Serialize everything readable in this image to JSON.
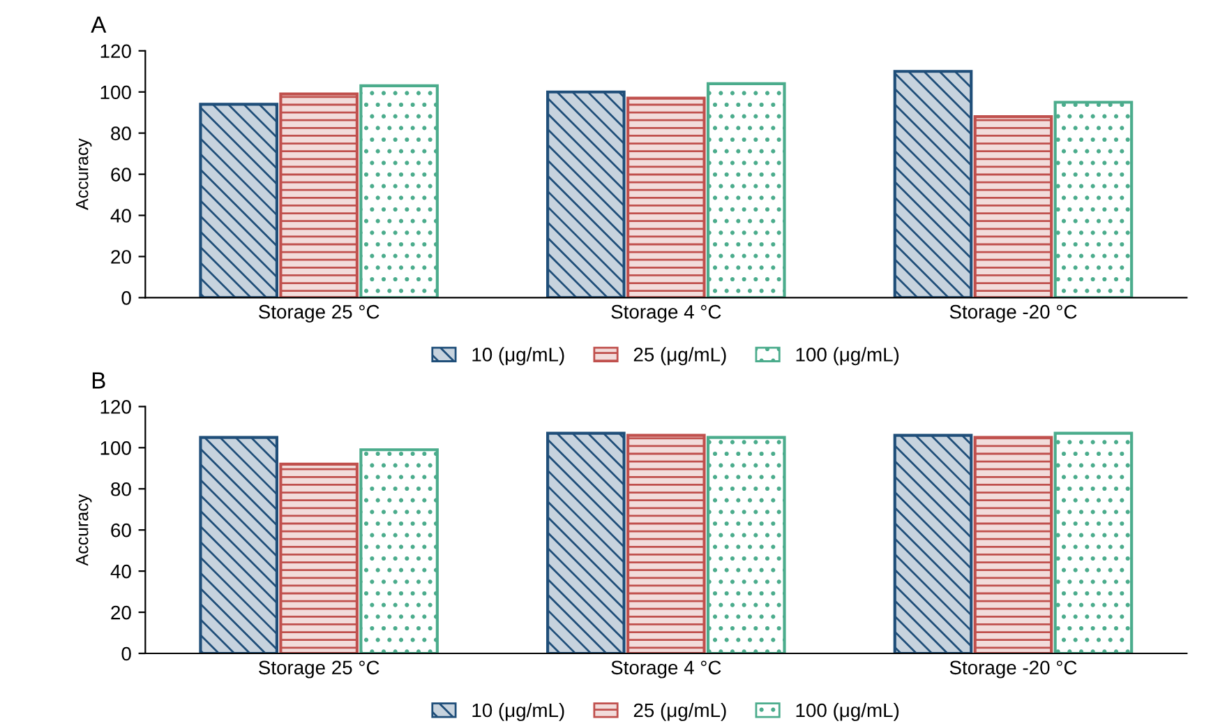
{
  "chart_data": [
    {
      "type": "bar",
      "title": "A",
      "ylabel": "Accuracy",
      "categories": [
        "Storage 25 °C",
        "Storage 4 °C",
        "Storage -20 °C"
      ],
      "ylim": [
        0,
        120
      ],
      "yticks": [
        0,
        20,
        40,
        60,
        80,
        100,
        120
      ],
      "grid": false,
      "legend": "bottom",
      "series": [
        {
          "name": "10 (μg/mL)",
          "color": "#1f4e79",
          "values": [
            94,
            100,
            110
          ]
        },
        {
          "name": "25 (μg/mL)",
          "color": "#c0504d",
          "values": [
            99,
            97,
            88
          ]
        },
        {
          "name": "100 (μg/mL)",
          "color": "#4bac8c",
          "values": [
            103,
            104,
            95
          ]
        }
      ]
    },
    {
      "type": "bar",
      "title": "B",
      "ylabel": "Accuracy",
      "categories": [
        "Storage 25 °C",
        "Storage 4 °C",
        "Storage -20 °C"
      ],
      "ylim": [
        0,
        120
      ],
      "yticks": [
        0,
        20,
        40,
        60,
        80,
        100,
        120
      ],
      "grid": false,
      "legend": "bottom",
      "series": [
        {
          "name": "10 (μg/mL)",
          "color": "#1f4e79",
          "values": [
            105,
            107,
            106
          ]
        },
        {
          "name": "25 (μg/mL)",
          "color": "#c0504d",
          "values": [
            92,
            106,
            105
          ]
        },
        {
          "name": "100 (μg/mL)",
          "color": "#4bac8c",
          "values": [
            99,
            105,
            107
          ]
        }
      ]
    }
  ]
}
